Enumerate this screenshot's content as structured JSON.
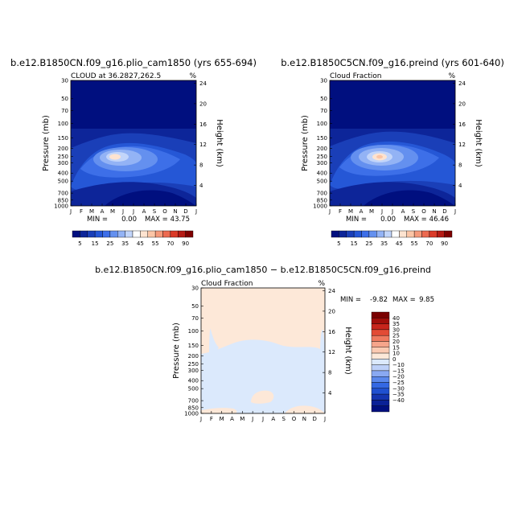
{
  "palette": {
    "panel_top": [
      "#000f7f",
      "#0d2599",
      "#1a3fb8",
      "#2557d6",
      "#3d6fe8",
      "#6490ef",
      "#93b3f5",
      "#c2d5fa",
      "#ffffff",
      "#fde3d0",
      "#fbc5a6",
      "#f59a7b",
      "#ec6a50",
      "#da3a28",
      "#b51a14",
      "#7f0000"
    ],
    "panel_diff": [
      "#000f7f",
      "#0a2197",
      "#1535b0",
      "#2050d0",
      "#3468e3",
      "#5b88ec",
      "#89a9f2",
      "#bdd0f8",
      "#dbe9fc",
      "#fde8d8",
      "#fbcab2",
      "#f6a58b",
      "#ef7a5f",
      "#e24b35",
      "#c7251c",
      "#a00e0a",
      "#7a0000"
    ]
  },
  "chart_data": [
    {
      "type": "heatmap",
      "title": "b.e12.B1850CN.f09_g16.plio_cam1850 (yrs 655-694)",
      "subtitle_left": "CLOUD at 36.2827,262.5",
      "subtitle_right": "%",
      "xlabel": "",
      "ylabel": "Pressure (mb)",
      "ylabel_right": "Height (km)",
      "x_ticks": [
        "J",
        "F",
        "M",
        "A",
        "M",
        "J",
        "J",
        "A",
        "S",
        "O",
        "N",
        "D",
        "J"
      ],
      "y_ticks": [
        "30",
        "50",
        "70",
        "100",
        "150",
        "200",
        "250",
        "300",
        "400",
        "500",
        "700",
        "850",
        "1000"
      ],
      "y_ticks_right": [
        "24",
        "20",
        "16",
        "12",
        "8",
        "4"
      ],
      "min_label": "MIN =",
      "min_value": "0.00",
      "max_label": "MAX =",
      "max_value": "43.75",
      "peak_value": 43.75,
      "levels": [
        "5",
        "15",
        "25",
        "35",
        "45",
        "55",
        "70",
        "90"
      ]
    },
    {
      "type": "heatmap",
      "title": "b.e12.B1850C5CN.f09_g16.preind (yrs 601-640)",
      "subtitle_left": "Cloud Fraction",
      "subtitle_right": "%",
      "xlabel": "",
      "ylabel": "Pressure (mb)",
      "ylabel_right": "Height (km)",
      "x_ticks": [
        "J",
        "F",
        "M",
        "A",
        "M",
        "J",
        "J",
        "A",
        "S",
        "O",
        "N",
        "D",
        "J"
      ],
      "y_ticks": [
        "30",
        "50",
        "70",
        "100",
        "150",
        "200",
        "250",
        "300",
        "400",
        "500",
        "700",
        "850",
        "1000"
      ],
      "y_ticks_right": [
        "24",
        "20",
        "16",
        "12",
        "8",
        "4"
      ],
      "min_label": "MIN =",
      "min_value": "0.00",
      "max_label": "MAX =",
      "max_value": "46.46",
      "peak_value": 46.46,
      "levels": [
        "5",
        "15",
        "25",
        "35",
        "45",
        "55",
        "70",
        "90"
      ]
    },
    {
      "type": "heatmap",
      "title": "b.e12.B1850CN.f09_g16.plio_cam1850 − b.e12.B1850C5CN.f09_g16.preind",
      "subtitle_left": "Cloud Fraction",
      "subtitle_right": "%",
      "xlabel": "",
      "ylabel": "Pressure (mb)",
      "ylabel_right": "Height (km)",
      "x_ticks": [
        "J",
        "F",
        "M",
        "A",
        "M",
        "J",
        "J",
        "A",
        "S",
        "O",
        "N",
        "D",
        "J"
      ],
      "y_ticks": [
        "30",
        "50",
        "70",
        "100",
        "150",
        "200",
        "250",
        "300",
        "400",
        "500",
        "700",
        "850",
        "1000"
      ],
      "y_ticks_right": [
        "24",
        "20",
        "16",
        "12",
        "8",
        "4"
      ],
      "min_label": "MIN =",
      "min_value": "-9.82",
      "max_label": "MAX =",
      "max_value": "9.85",
      "levels": [
        "40",
        "35",
        "30",
        "25",
        "20",
        "15",
        "10",
        "0",
        "−10",
        "−15",
        "−20",
        "−25",
        "−30",
        "−35",
        "−40"
      ]
    }
  ]
}
